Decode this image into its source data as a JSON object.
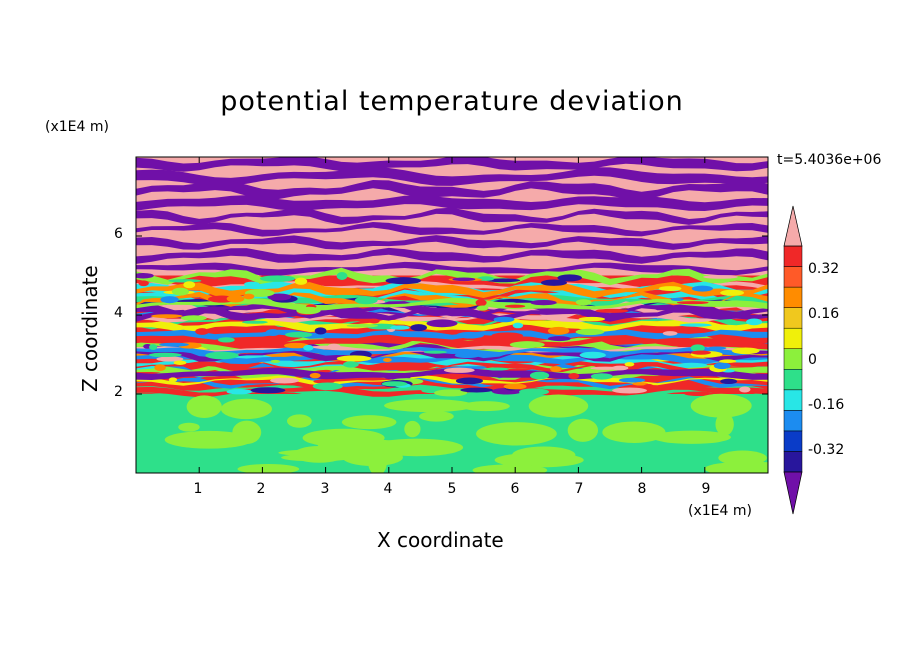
{
  "chart_data": {
    "type": "heatmap",
    "title": "potential temperature deviation",
    "xlabel": "X coordinate",
    "ylabel": "Z coordinate",
    "x_unit": "(x1E4 m)",
    "y_unit": "(x1E4 m)",
    "time_label": "t=5.4036e+06",
    "xlim": [
      0,
      10
    ],
    "ylim": [
      0,
      8
    ],
    "xticks": [
      "1",
      "2",
      "3",
      "4",
      "5",
      "6",
      "7",
      "8",
      "9"
    ],
    "yticks": [
      "2",
      "4",
      "6"
    ],
    "colorbar": {
      "tick_labels": [
        "0.32",
        "0.16",
        "0",
        "-0.16",
        "-0.32"
      ],
      "tick_values": [
        0.32,
        0.16,
        0,
        -0.16,
        -0.32
      ],
      "levels": [
        -0.4,
        -0.32,
        -0.24,
        -0.16,
        -0.08,
        0,
        0.08,
        0.16,
        0.24,
        0.32,
        0.4
      ],
      "colors_low_to_high": [
        "#7010a8",
        "#28169c",
        "#0a3cc8",
        "#1c8cf0",
        "#28e6e6",
        "#2ee08a",
        "#8cf03c",
        "#f0f00a",
        "#f0c81e",
        "#ff8c00",
        "#ff5a28",
        "#f02828",
        "#f5aaaa"
      ],
      "extend": "both"
    },
    "bands": [
      {
        "z_range": [
          7.0,
          8.0
        ],
        "pattern": "alternating pink and purple",
        "colors": [
          "#f5aaaa",
          "#7010a8"
        ]
      },
      {
        "z_range": [
          5.0,
          7.0
        ],
        "pattern": "alternating pink and purple layers with thin mixed edges",
        "colors": [
          "#f5aaaa",
          "#7010a8"
        ]
      },
      {
        "z_range": [
          2.0,
          5.0
        ],
        "pattern": "turbulent mixed layers of all colors",
        "colors": [
          "#f02828",
          "#ff8c00",
          "#f0f00a",
          "#8cf03c",
          "#2ee08a",
          "#28e6e6",
          "#1c8cf0",
          "#28169c",
          "#7010a8",
          "#f5aaaa"
        ]
      },
      {
        "z_range": [
          0.0,
          2.0
        ],
        "pattern": "green background with light-green patches",
        "colors": [
          "#2ee08a",
          "#8cf03c"
        ]
      }
    ]
  }
}
